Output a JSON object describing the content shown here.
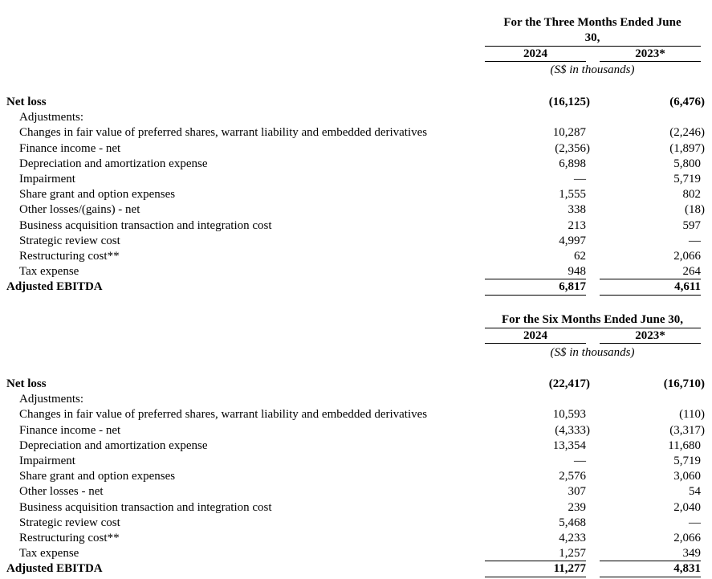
{
  "tables": [
    {
      "title": "For the Three Months Ended June 30,",
      "title_line1": "For the Three Months Ended June",
      "title_line2": "30,",
      "col1": "2024",
      "col2": "2023*",
      "unit": "(S$ in thousands)",
      "rows": [
        {
          "label": "Net loss",
          "v1": "(16,125)",
          "v2": "(6,476)",
          "bold": true
        },
        {
          "label": "Adjustments:",
          "v1": "",
          "v2": "",
          "indent": true
        },
        {
          "label": "Changes in fair value of preferred shares, warrant liability and embedded derivatives",
          "v1": "10,287",
          "v2": "(2,246)",
          "indent": true
        },
        {
          "label": "Finance income - net",
          "v1": "(2,356)",
          "v2": "(1,897)",
          "indent": true
        },
        {
          "label": "Depreciation and amortization expense",
          "v1": "6,898",
          "v2": "5,800",
          "indent": true
        },
        {
          "label": "Impairment",
          "v1": "—",
          "v2": "5,719",
          "indent": true
        },
        {
          "label": "Share grant and option expenses",
          "v1": "1,555",
          "v2": "802",
          "indent": true
        },
        {
          "label": "Other losses/(gains) - net",
          "v1": "338",
          "v2": "(18)",
          "indent": true
        },
        {
          "label": "Business acquisition transaction and integration cost",
          "v1": "213",
          "v2": "597",
          "indent": true
        },
        {
          "label": "Strategic review cost",
          "v1": "4,997",
          "v2": "—",
          "indent": true
        },
        {
          "label": "Restructuring cost**",
          "v1": "62",
          "v2": "2,066",
          "indent": true
        },
        {
          "label": "Tax expense",
          "v1": "948",
          "v2": "264",
          "indent": true
        },
        {
          "label": "Adjusted EBITDA",
          "v1": "6,817",
          "v2": "4,611",
          "bold": true,
          "total": true
        }
      ]
    },
    {
      "title": "For the Six Months Ended June 30,",
      "col1": "2024",
      "col2": "2023*",
      "unit": "(S$ in thousands)",
      "rows": [
        {
          "label": "Net loss",
          "v1": "(22,417)",
          "v2": "(16,710)",
          "bold": true
        },
        {
          "label": "Adjustments:",
          "v1": "",
          "v2": "",
          "indent": true
        },
        {
          "label": "Changes in fair value of preferred shares, warrant liability and embedded derivatives",
          "v1": "10,593",
          "v2": "(110)",
          "indent": true
        },
        {
          "label": "Finance income - net",
          "v1": "(4,333)",
          "v2": "(3,317)",
          "indent": true
        },
        {
          "label": "Depreciation and amortization expense",
          "v1": "13,354",
          "v2": "11,680",
          "indent": true
        },
        {
          "label": "Impairment",
          "v1": "—",
          "v2": "5,719",
          "indent": true
        },
        {
          "label": "Share grant and option expenses",
          "v1": "2,576",
          "v2": "3,060",
          "indent": true
        },
        {
          "label": "Other losses - net",
          "v1": "307",
          "v2": "54",
          "indent": true
        },
        {
          "label": "Business acquisition transaction and integration cost",
          "v1": "239",
          "v2": "2,040",
          "indent": true
        },
        {
          "label": "Strategic review cost",
          "v1": "5,468",
          "v2": "—",
          "indent": true
        },
        {
          "label": "Restructuring cost**",
          "v1": "4,233",
          "v2": "2,066",
          "indent": true
        },
        {
          "label": "Tax expense",
          "v1": "1,257",
          "v2": "349",
          "indent": true
        },
        {
          "label": "Adjusted EBITDA",
          "v1": "11,277",
          "v2": "4,831",
          "bold": true,
          "total": true
        }
      ]
    }
  ]
}
